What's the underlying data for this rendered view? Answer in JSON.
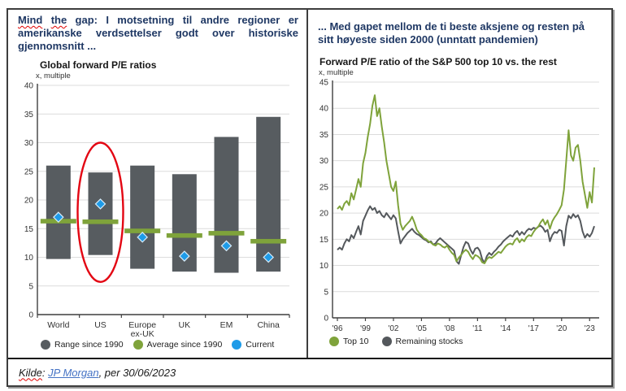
{
  "left_panel": {
    "header": {
      "misspelled_1": "Mind",
      "misspelled_2": "the",
      "rest": "gap: I motsetning til andre regioner er amerikanske verdsettelser godt over historiske gjennomsnitt ..."
    }
  },
  "right_panel": {
    "header": "... Med gapet mellom de ti beste aksjene og resten på sitt høyeste siden 2000 (unntatt pandemien)"
  },
  "footer": {
    "source_label": "Kilde",
    "separator": ": ",
    "link_text": "JP Morgan",
    "suffix": ", per 30/06/2023"
  },
  "colors": {
    "header_navy": "#1f3864",
    "range_gray": "#575c60",
    "average_green": "#7fa33b",
    "current_blue": "#1e9be8",
    "annotation_red": "#e30613",
    "gridline": "#dcdcdc",
    "axis": "#3f3f3f",
    "link_blue": "#4472c4"
  },
  "chart_data": [
    {
      "type": "bar",
      "title": "Global forward P/E ratios",
      "unit_label": "x, multiple",
      "categories": [
        "World",
        "US",
        "Europe\nex-UK",
        "UK",
        "EM",
        "China"
      ],
      "series": [
        {
          "name": "Range since 1990",
          "low": [
            9.7,
            10.4,
            8.0,
            7.5,
            7.3,
            7.5
          ],
          "high": [
            26.0,
            24.8,
            26.0,
            24.5,
            31.0,
            34.5
          ],
          "color": "#575c60"
        },
        {
          "name": "Average since 1990",
          "values": [
            16.3,
            16.2,
            14.6,
            13.8,
            14.2,
            12.8
          ],
          "color": "#7fa33b"
        },
        {
          "name": "Current",
          "values": [
            17.0,
            19.3,
            13.5,
            10.2,
            12.0,
            10.0
          ],
          "color": "#1e9be8"
        }
      ],
      "ylim": [
        0,
        40
      ],
      "ytick": 5,
      "grid": true,
      "legend_position": "bottom",
      "annotation": {
        "shape": "ellipse",
        "category": "US",
        "value_top": 30.0,
        "value_bottom": 5.7,
        "color": "#e30613"
      }
    },
    {
      "type": "line",
      "title": "Forward P/E ratio of the S&P 500 top 10 vs. the rest",
      "unit_label": "x, multiple",
      "x_start": 1996.0,
      "x_step": 0.25,
      "xticks": [
        1996,
        1999,
        2002,
        2005,
        2008,
        2011,
        2014,
        2017,
        2020,
        2023
      ],
      "xtick_labels": [
        "'96",
        "'99",
        "'02",
        "'05",
        "'08",
        "'11",
        "'14",
        "'17",
        "'20",
        "'23"
      ],
      "ylim": [
        0,
        45
      ],
      "ytick": 5,
      "grid": true,
      "legend_position": "bottom",
      "series": [
        {
          "name": "Top 10",
          "color": "#7fa33b",
          "values": [
            20.8,
            21.3,
            20.6,
            21.8,
            22.3,
            21.5,
            23.8,
            22.6,
            24.5,
            26.5,
            25.0,
            29.5,
            31.5,
            34.5,
            37.0,
            40.5,
            42.5,
            38.5,
            40.0,
            36.5,
            33.5,
            30.0,
            27.5,
            25.0,
            24.2,
            26.0,
            21.5,
            18.0,
            16.8,
            17.5,
            18.0,
            18.5,
            19.3,
            18.2,
            16.8,
            16.2,
            15.8,
            15.2,
            15.0,
            14.6,
            14.4,
            14.0,
            13.8,
            14.2,
            14.0,
            13.6,
            13.4,
            13.8,
            13.0,
            12.4,
            12.0,
            10.8,
            11.5,
            12.0,
            12.6,
            13.0,
            12.6,
            11.8,
            11.2,
            12.0,
            11.8,
            11.4,
            10.6,
            10.4,
            11.2,
            11.6,
            11.4,
            11.8,
            12.2,
            12.6,
            12.4,
            13.0,
            13.6,
            14.0,
            14.2,
            14.0,
            14.8,
            15.2,
            14.4,
            15.0,
            14.6,
            15.4,
            15.8,
            15.6,
            16.4,
            17.0,
            17.4,
            18.2,
            18.8,
            17.8,
            18.6,
            17.0,
            18.4,
            19.2,
            19.8,
            20.6,
            21.5,
            24.5,
            30.0,
            35.8,
            31.0,
            30.0,
            32.5,
            33.0,
            30.0,
            26.0,
            23.5,
            21.0,
            24.0,
            22.0,
            28.7
          ]
        },
        {
          "name": "Remaining stocks",
          "color": "#54585c",
          "values": [
            13.0,
            13.4,
            13.0,
            14.2,
            15.0,
            14.6,
            15.8,
            15.2,
            16.4,
            17.5,
            15.9,
            18.5,
            19.5,
            20.5,
            21.3,
            20.6,
            21.0,
            20.0,
            20.4,
            19.6,
            19.2,
            20.0,
            19.4,
            18.8,
            19.6,
            19.0,
            16.5,
            14.2,
            15.0,
            15.6,
            16.2,
            16.6,
            17.0,
            16.4,
            16.0,
            15.8,
            15.4,
            15.0,
            14.8,
            14.4,
            14.6,
            14.0,
            14.2,
            14.8,
            15.2,
            14.8,
            14.4,
            14.0,
            13.6,
            13.2,
            12.8,
            10.8,
            10.3,
            12.0,
            13.5,
            14.5,
            14.2,
            13.0,
            12.2,
            13.2,
            13.4,
            12.8,
            11.2,
            10.5,
            11.8,
            12.4,
            12.0,
            12.6,
            13.0,
            13.6,
            14.0,
            14.6,
            15.0,
            15.4,
            15.8,
            15.5,
            16.2,
            16.6,
            15.8,
            16.4,
            15.9,
            16.6,
            17.0,
            16.8,
            17.2,
            17.0,
            17.4,
            17.6,
            17.2,
            16.4,
            16.8,
            14.6,
            15.8,
            16.4,
            16.2,
            16.8,
            16.6,
            13.8,
            17.5,
            19.5,
            19.0,
            19.8,
            19.2,
            19.6,
            18.5,
            16.5,
            15.3,
            16.0,
            15.5,
            16.2,
            17.5
          ]
        }
      ]
    }
  ]
}
